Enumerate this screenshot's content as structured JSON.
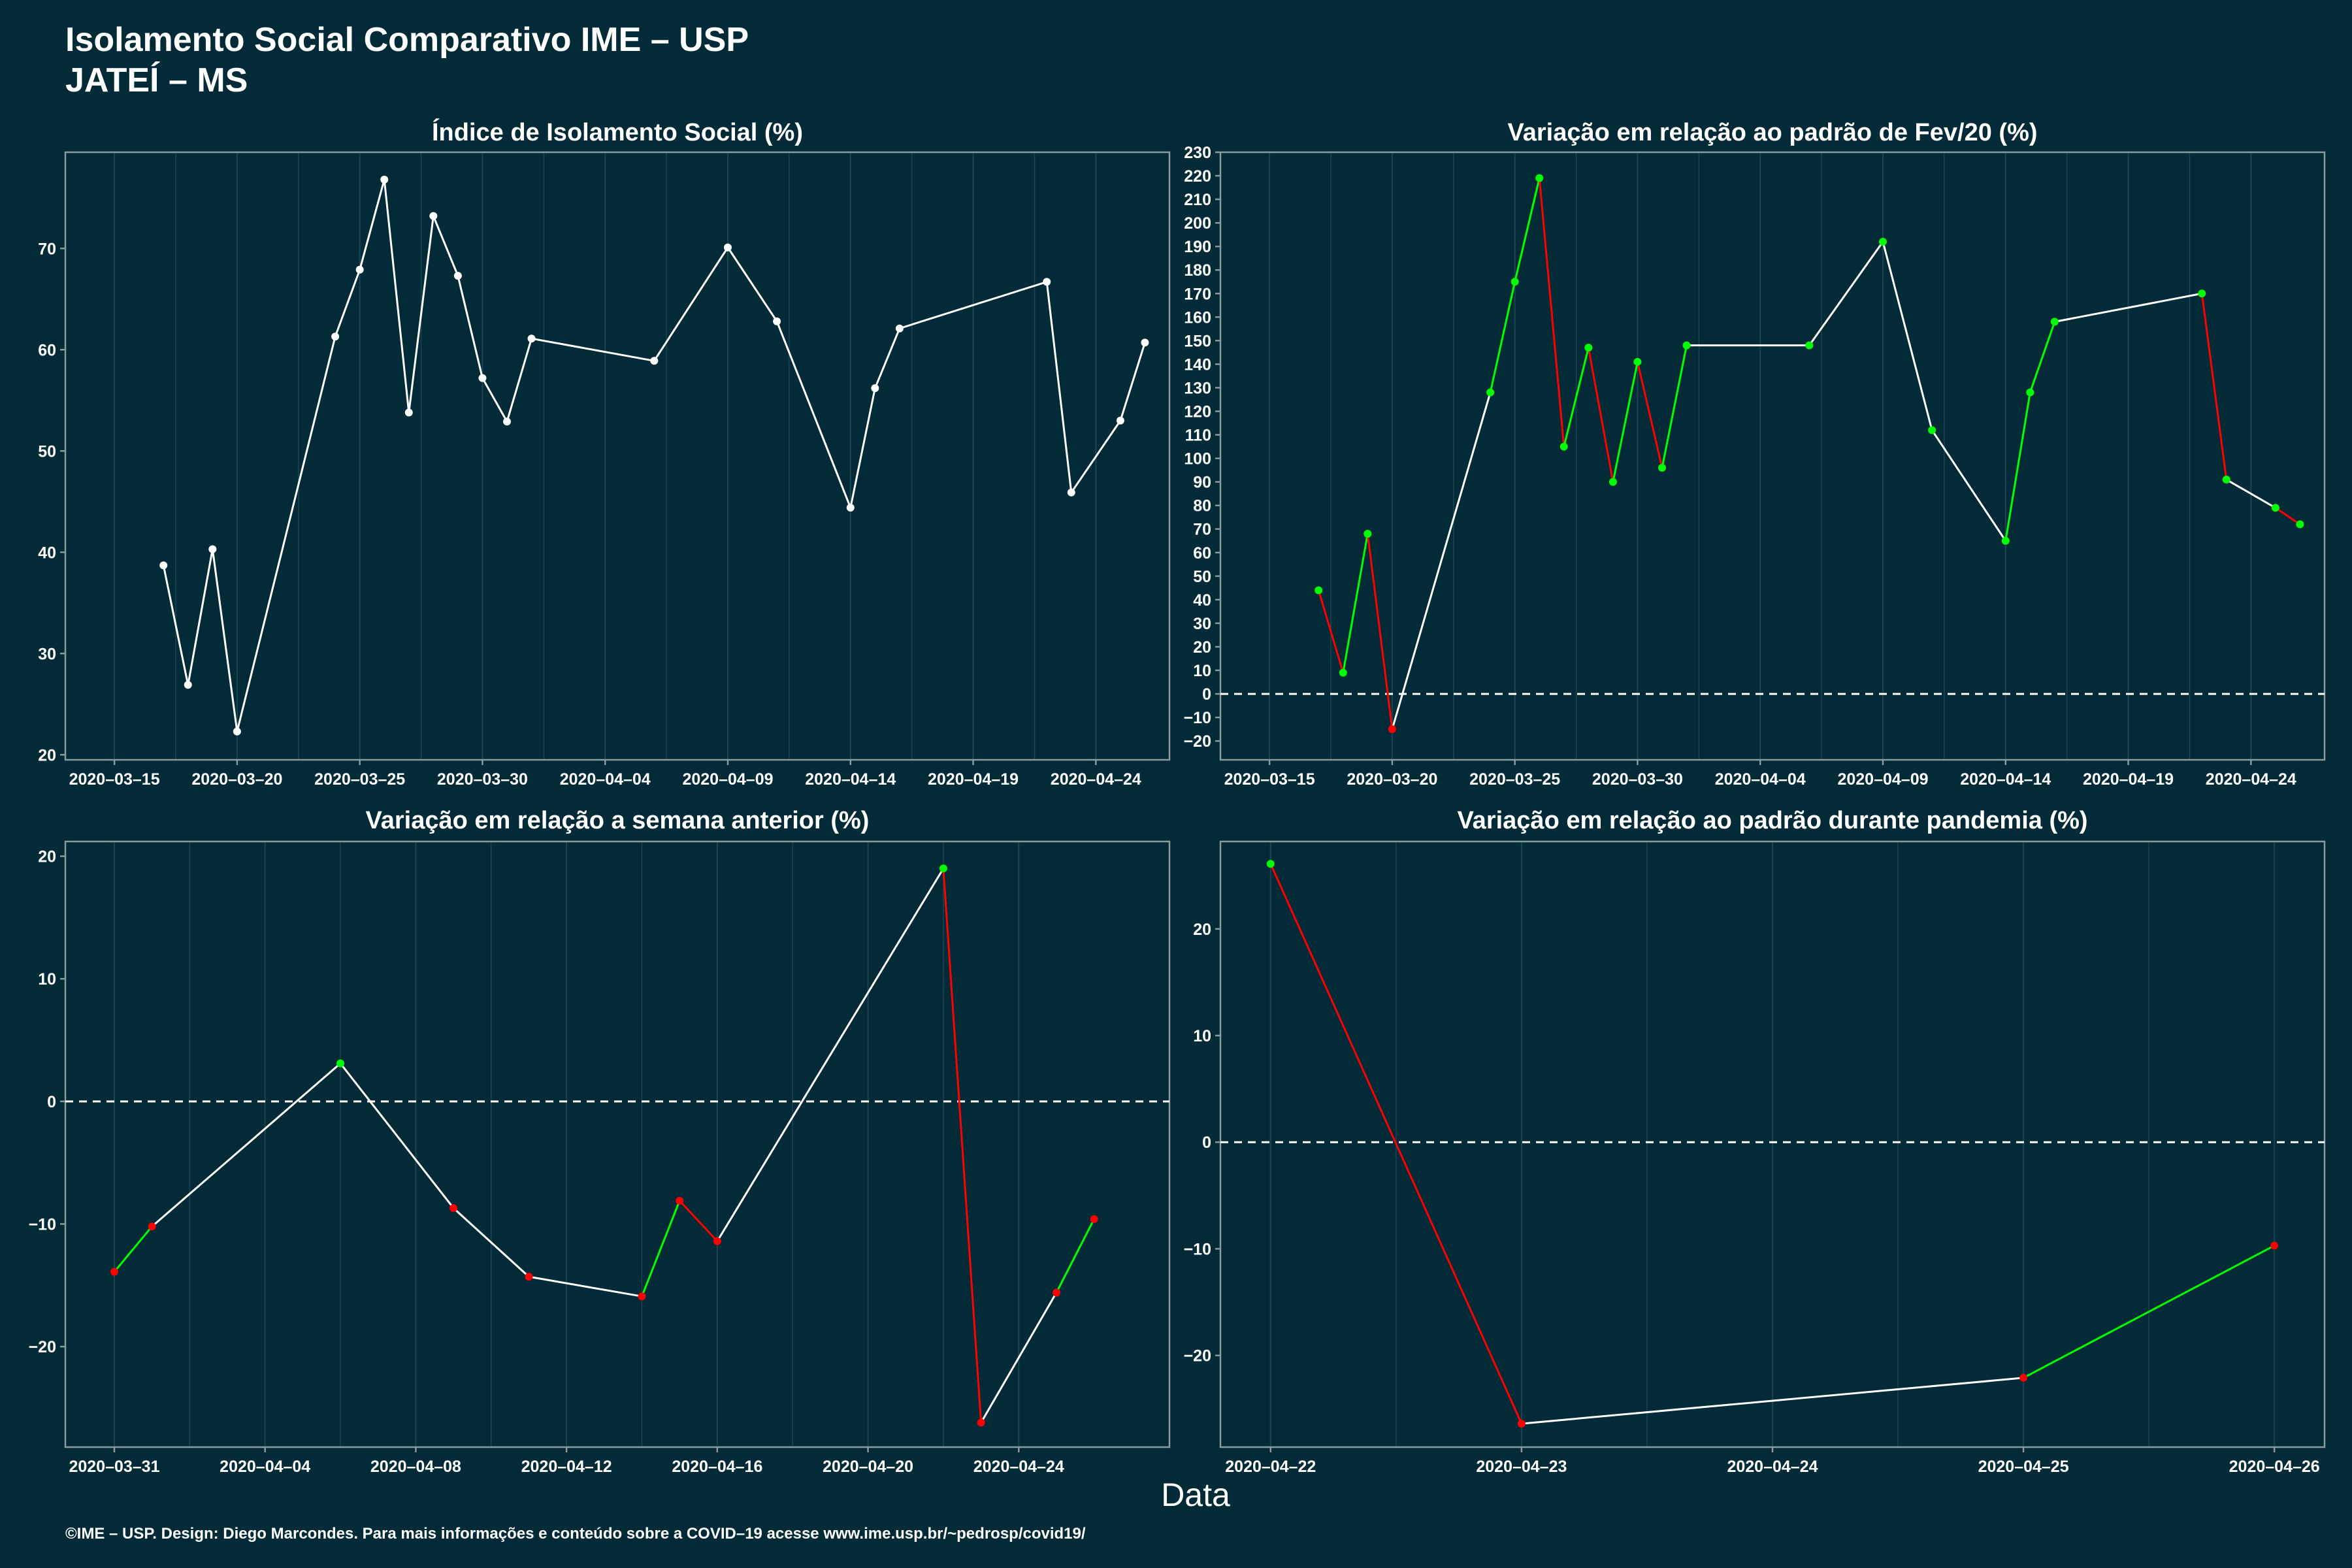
{
  "header": {
    "title_line1": "Isolamento Social Comparativo IME – USP",
    "title_line2": "JATEÍ – MS"
  },
  "footer": {
    "xlabel": "Data",
    "caption": "©IME – USP. Design: Diego Marcondes. Para mais informações e conteúdo sobre a COVID–19 acesse www.ime.usp.br/~pedrosp/covid19/"
  },
  "colors": {
    "background": "#022b37",
    "line_neutral": "#ffffff",
    "increase": "#00ff00",
    "decrease": "#ff0000",
    "frame": "#8a9a9f",
    "grid": "#1b4450"
  },
  "chart_data": [
    {
      "id": "indice",
      "type": "line",
      "title": "Índice de Isolamento Social (%)",
      "color_mode": "white",
      "x_ticks": [
        "2020-03-15",
        "2020-03-20",
        "2020-03-25",
        "2020-03-30",
        "2020-04-04",
        "2020-04-09",
        "2020-04-14",
        "2020-04-19",
        "2020-04-24"
      ],
      "x_range": [
        "2020-03-13",
        "2020-04-27"
      ],
      "y_ticks": [
        20,
        30,
        40,
        50,
        60,
        70
      ],
      "y_range": [
        19.5,
        79.5
      ],
      "reference_line": null,
      "points": [
        [
          "2020-03-17",
          38.7
        ],
        [
          "2020-03-18",
          26.9
        ],
        [
          "2020-03-19",
          40.3
        ],
        [
          "2020-03-20",
          22.3
        ],
        [
          "2020-03-24",
          61.3
        ],
        [
          "2020-03-25",
          67.9
        ],
        [
          "2020-03-26",
          76.8
        ],
        [
          "2020-03-27",
          53.8
        ],
        [
          "2020-03-28",
          73.2
        ],
        [
          "2020-03-29",
          67.3
        ],
        [
          "2020-03-30",
          57.2
        ],
        [
          "2020-03-31",
          52.9
        ],
        [
          "2020-04-01",
          61.1
        ],
        [
          "2020-04-06",
          58.9
        ],
        [
          "2020-04-09",
          70.1
        ],
        [
          "2020-04-11",
          62.8
        ],
        [
          "2020-04-14",
          44.4
        ],
        [
          "2020-04-15",
          56.2
        ],
        [
          "2020-04-16",
          62.1
        ],
        [
          "2020-04-22",
          66.7
        ],
        [
          "2020-04-23",
          45.9
        ],
        [
          "2020-04-25",
          53.0
        ],
        [
          "2020-04-26",
          60.7
        ]
      ]
    },
    {
      "id": "fev20",
      "type": "line",
      "title": "Variação em relação ao padrão de Fev/20 (%)",
      "color_mode": "sign",
      "x_ticks": [
        "2020-03-15",
        "2020-03-20",
        "2020-03-25",
        "2020-03-30",
        "2020-04-04",
        "2020-04-09",
        "2020-04-14",
        "2020-04-19",
        "2020-04-24"
      ],
      "x_range": [
        "2020-03-13",
        "2020-04-27"
      ],
      "y_ticks": [
        -20,
        -10,
        0,
        10,
        20,
        30,
        40,
        50,
        60,
        70,
        80,
        90,
        100,
        110,
        120,
        130,
        140,
        150,
        160,
        170,
        180,
        190,
        200,
        210,
        220,
        230
      ],
      "y_range": [
        -28,
        230
      ],
      "reference_line": 0,
      "points": [
        [
          "2020-03-17",
          44
        ],
        [
          "2020-03-18",
          9
        ],
        [
          "2020-03-19",
          68
        ],
        [
          "2020-03-20",
          -15
        ],
        [
          "2020-03-24",
          128
        ],
        [
          "2020-03-25",
          175
        ],
        [
          "2020-03-26",
          219
        ],
        [
          "2020-03-27",
          105
        ],
        [
          "2020-03-28",
          147
        ],
        [
          "2020-03-29",
          90
        ],
        [
          "2020-03-30",
          141
        ],
        [
          "2020-03-31",
          96
        ],
        [
          "2020-04-01",
          148
        ],
        [
          "2020-04-06",
          148
        ],
        [
          "2020-04-09",
          192
        ],
        [
          "2020-04-11",
          112
        ],
        [
          "2020-04-14",
          65
        ],
        [
          "2020-04-15",
          128
        ],
        [
          "2020-04-16",
          158
        ],
        [
          "2020-04-22",
          170
        ],
        [
          "2020-04-23",
          91
        ],
        [
          "2020-04-25",
          79
        ],
        [
          "2020-04-26",
          72
        ]
      ]
    },
    {
      "id": "semana",
      "type": "line",
      "title": "Variação em relação a semana anterior (%)",
      "color_mode": "sign",
      "x_ticks": [
        "2020-03-31",
        "2020-04-04",
        "2020-04-08",
        "2020-04-12",
        "2020-04-16",
        "2020-04-20",
        "2020-04-24"
      ],
      "x_range": [
        "2020-03-29.7",
        "2020-04-28.0"
      ],
      "y_ticks": [
        -20,
        -10,
        0,
        10,
        20
      ],
      "y_range": [
        -28.2,
        21.2
      ],
      "reference_line": 0,
      "points": [
        [
          "2020-03-31",
          -13.9
        ],
        [
          "2020-04-01",
          -10.2
        ],
        [
          "2020-04-06",
          3.1
        ],
        [
          "2020-04-09",
          -8.7
        ],
        [
          "2020-04-11",
          -14.3
        ],
        [
          "2020-04-14",
          -15.9
        ],
        [
          "2020-04-15",
          -8.1
        ],
        [
          "2020-04-16",
          -11.4
        ],
        [
          "2020-04-22",
          19.0
        ],
        [
          "2020-04-23",
          -26.2
        ],
        [
          "2020-04-25",
          -15.6
        ],
        [
          "2020-04-26",
          -9.6
        ]
      ]
    },
    {
      "id": "pandemia",
      "type": "line",
      "title": "Variação em relação ao padrão durante pandemia (%)",
      "color_mode": "sign",
      "x_ticks": [
        "2020-04-22",
        "2020-04-23",
        "2020-04-24",
        "2020-04-25",
        "2020-04-26"
      ],
      "x_range": [
        "2020-04-21.8",
        "2020-04-26.2"
      ],
      "y_ticks": [
        -20,
        -10,
        0,
        10,
        20
      ],
      "y_range": [
        -28.6,
        28.2
      ],
      "reference_line": 0,
      "points": [
        [
          "2020-04-22",
          26.1
        ],
        [
          "2020-04-23",
          -26.4
        ],
        [
          "2020-04-25",
          -22.1
        ],
        [
          "2020-04-26",
          -9.7
        ]
      ]
    }
  ]
}
